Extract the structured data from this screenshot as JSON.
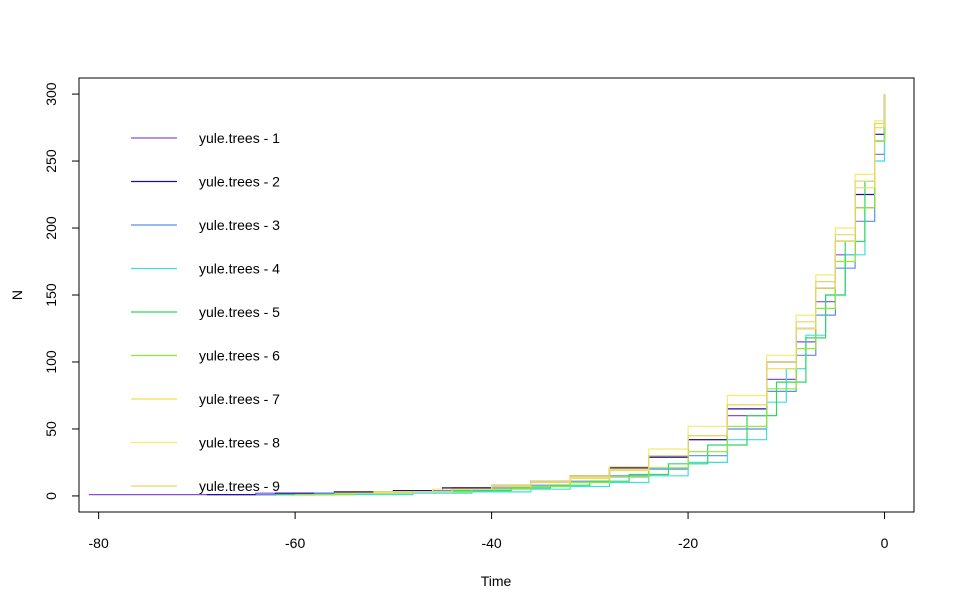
{
  "chart_data": {
    "type": "line",
    "title": "",
    "xlabel": "Time",
    "ylabel": "N",
    "xlim": [
      -82,
      3
    ],
    "ylim": [
      -12,
      312
    ],
    "x_ticks": [
      -80,
      -60,
      -40,
      -20,
      0
    ],
    "y_ticks": [
      0,
      50,
      100,
      150,
      200,
      250,
      300
    ],
    "grid": false,
    "legend_position": "left",
    "series": [
      {
        "name": "yule.trees - 1",
        "color": "#8a4fd8",
        "x": [
          -81,
          -74,
          -64,
          -58,
          -50,
          -44,
          -40,
          -36,
          -32,
          -28,
          -24,
          -20,
          -16,
          -12,
          -9,
          -7,
          -5,
          -3,
          -1,
          0
        ],
        "y": [
          1,
          1,
          2,
          2,
          4,
          6,
          8,
          11,
          15,
          21,
          29,
          42,
          60,
          87,
          115,
          145,
          180,
          215,
          265,
          300
        ]
      },
      {
        "name": "yule.trees - 2",
        "color": "#1f0fa0",
        "x": [
          -69,
          -62,
          -56,
          -50,
          -45,
          -40,
          -36,
          -32,
          -28,
          -24,
          -20,
          -16,
          -12,
          -9,
          -7,
          -5,
          -3,
          -1,
          0
        ],
        "y": [
          1,
          2,
          3,
          4,
          6,
          8,
          11,
          15,
          21,
          29,
          42,
          65,
          100,
          125,
          155,
          190,
          225,
          270,
          300
        ]
      },
      {
        "name": "yule.trees - 3",
        "color": "#5a8ef0",
        "x": [
          -64,
          -58,
          -52,
          -46,
          -40,
          -36,
          -32,
          -28,
          -24,
          -20,
          -16,
          -12,
          -9,
          -7,
          -5,
          -3,
          -1,
          0
        ],
        "y": [
          1,
          2,
          3,
          4,
          6,
          8,
          11,
          15,
          20,
          30,
          50,
          78,
          105,
          135,
          170,
          205,
          255,
          300
        ]
      },
      {
        "name": "yule.trees - 4",
        "color": "#40dde0",
        "x": [
          -60,
          -54,
          -48,
          -42,
          -36,
          -32,
          -28,
          -24,
          -20,
          -16,
          -12,
          -10,
          -8,
          -6,
          -4,
          -2,
          -1,
          0
        ],
        "y": [
          1,
          1,
          2,
          3,
          5,
          7,
          10,
          15,
          25,
          42,
          70,
          95,
          120,
          150,
          180,
          215,
          250,
          300
        ]
      },
      {
        "name": "yule.trees - 5",
        "color": "#30d860",
        "x": [
          -62,
          -56,
          -50,
          -44,
          -38,
          -34,
          -30,
          -26,
          -22,
          -18,
          -14,
          -11,
          -8,
          -6,
          -4,
          -2,
          -1,
          0
        ],
        "y": [
          1,
          2,
          3,
          4,
          6,
          8,
          11,
          16,
          24,
          38,
          60,
          85,
          118,
          150,
          190,
          235,
          265,
          300
        ]
      },
      {
        "name": "yule.trees - 6",
        "color": "#90e830",
        "x": [
          -60,
          -54,
          -48,
          -42,
          -36,
          -32,
          -28,
          -24,
          -20,
          -16,
          -12,
          -9,
          -7,
          -5,
          -3,
          -1,
          0
        ],
        "y": [
          1,
          2,
          3,
          5,
          7,
          10,
          14,
          21,
          33,
          52,
          80,
          110,
          140,
          175,
          215,
          265,
          300
        ]
      },
      {
        "name": "yule.trees - 7",
        "color": "#ece24a",
        "x": [
          -56,
          -50,
          -44,
          -40,
          -36,
          -32,
          -28,
          -24,
          -20,
          -16,
          -12,
          -9,
          -7,
          -5,
          -3,
          -1,
          0
        ],
        "y": [
          2,
          3,
          5,
          7,
          10,
          13,
          19,
          30,
          45,
          68,
          95,
          125,
          155,
          190,
          230,
          275,
          300
        ]
      },
      {
        "name": "yule.trees - 8",
        "color": "#f3ec6e",
        "x": [
          -52,
          -46,
          -40,
          -36,
          -32,
          -28,
          -24,
          -20,
          -16,
          -12,
          -9,
          -7,
          -5,
          -3,
          -1,
          0
        ],
        "y": [
          3,
          5,
          8,
          11,
          15,
          22,
          35,
          52,
          75,
          105,
          135,
          165,
          200,
          240,
          280,
          300
        ]
      },
      {
        "name": "yule.trees - 9",
        "color": "#ead46a",
        "x": [
          -50,
          -44,
          -40,
          -36,
          -32,
          -28,
          -24,
          -20,
          -16,
          -12,
          -9,
          -7,
          -5,
          -3,
          -1,
          0
        ],
        "y": [
          3,
          5,
          7,
          10,
          14,
          20,
          30,
          45,
          68,
          100,
          130,
          160,
          195,
          235,
          278,
          300
        ]
      }
    ]
  }
}
